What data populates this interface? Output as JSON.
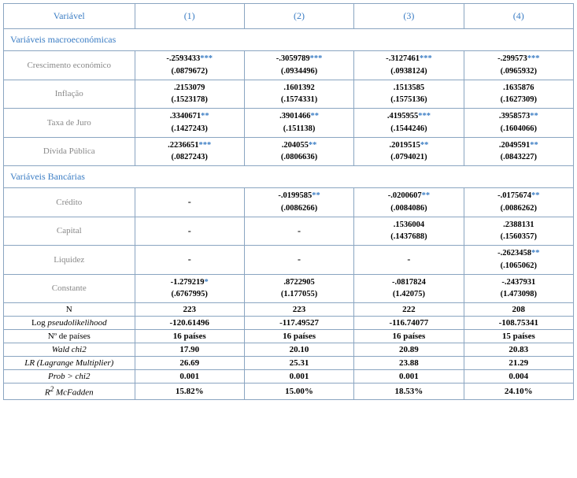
{
  "header": {
    "variable": "Variável",
    "cols": [
      "(1)",
      "(2)",
      "(3)",
      "(4)"
    ]
  },
  "section_macro": "Variáveis macroeconómicas",
  "section_bank": "Variáveis Bancárias",
  "macro_rows": [
    {
      "label": "Crescimento económico",
      "cells": [
        {
          "coef": "-.2593433",
          "stars": "***",
          "se": "(.0879672)"
        },
        {
          "coef": "-.3059789",
          "stars": "***",
          "se": "(.0934496)"
        },
        {
          "coef": "-.3127461",
          "stars": "***",
          "se": "(.0938124)"
        },
        {
          "coef": "-.299573",
          "stars": "***",
          "se": "(.0965932)"
        }
      ]
    },
    {
      "label": "Inflação",
      "cells": [
        {
          "coef": ".2153079",
          "stars": "",
          "se": "(.1523178)"
        },
        {
          "coef": ".1601392",
          "stars": "",
          "se": "(.1574331)"
        },
        {
          "coef": ".1513585",
          "stars": "",
          "se": "(.1575136)"
        },
        {
          "coef": ".1635876",
          "stars": "",
          "se": "(.1627309)"
        }
      ]
    },
    {
      "label": "Taxa de Juro",
      "cells": [
        {
          "coef": ".3340671",
          "stars": "**",
          "se": "(.1427243)"
        },
        {
          "coef": ".3901466",
          "stars": "**",
          "se": "(.151138)"
        },
        {
          "coef": ".4195955",
          "stars": "***",
          "se": "(.1544246)"
        },
        {
          "coef": ".3958573",
          "stars": "**",
          "se": "(.1604066)"
        }
      ]
    },
    {
      "label": "Dívida Pública",
      "cells": [
        {
          "coef": ".2236651",
          "stars": "***",
          "se": "(.0827243)"
        },
        {
          "coef": ".204055",
          "stars": "**",
          "se": "(.0806636)"
        },
        {
          "coef": ".2019515",
          "stars": "**",
          "se": "(.0794021)"
        },
        {
          "coef": ".2049591",
          "stars": "**",
          "se": "(.0843227)"
        }
      ]
    }
  ],
  "bank_rows": [
    {
      "label": "Crédito",
      "cells": [
        {
          "dash": "-"
        },
        {
          "coef": "-.0199585",
          "stars": "**",
          "se": "(.0086266)"
        },
        {
          "coef": "-.0200607",
          "stars": "**",
          "se": "(.0084086)"
        },
        {
          "coef": "-.0175674",
          "stars": "**",
          "se": "(.0086262)"
        }
      ]
    },
    {
      "label": "Capital",
      "cells": [
        {
          "dash": "-"
        },
        {
          "dash": "-"
        },
        {
          "coef": ".1536004",
          "stars": "",
          "se": "(.1437688)"
        },
        {
          "coef": ".2388131",
          "stars": "",
          "se": "(.1560357)"
        }
      ]
    },
    {
      "label": "Liquidez",
      "cells": [
        {
          "dash": "-"
        },
        {
          "dash": "-"
        },
        {
          "dash": "-"
        },
        {
          "coef": "-.2623458",
          "stars": "**",
          "se": "(.1065062)"
        }
      ]
    },
    {
      "label": "Constante",
      "cells": [
        {
          "coef": "-1.279219",
          "stars": "*",
          "se": "(.6767995)"
        },
        {
          "coef": ".8722905",
          "stars": "",
          "se": "(1.177055)"
        },
        {
          "coef": "-.0817824",
          "stars": "",
          "se": "(1.42075)"
        },
        {
          "coef": "-.2437931",
          "stars": "",
          "se": "(1.473098)"
        }
      ]
    }
  ],
  "stats": [
    {
      "label_plain": "N",
      "values": [
        "223",
        "223",
        "222",
        "208"
      ]
    },
    {
      "label_pre": "Log ",
      "label_ital": "pseudolikelihood",
      "values": [
        "-120.61496",
        "-117.49527",
        "-116.74077",
        "-108.75341"
      ]
    },
    {
      "label_plain": "Nº de países",
      "values": [
        "16 países",
        "16 países",
        "16 países",
        "15 países"
      ]
    },
    {
      "label_ital": "Wald chi2",
      "values": [
        "17.90",
        "20.10",
        "20.89",
        "20.83"
      ]
    },
    {
      "label_ital": "LR (Lagrange Multiplier)",
      "values": [
        "26.69",
        "25.31",
        "23.88",
        "21.29"
      ]
    },
    {
      "label_ital": "Prob > chi2",
      "values": [
        "0.001",
        "0.001",
        "0.001",
        "0.004"
      ]
    },
    {
      "label_pre_ital": "R",
      "label_sup": "2",
      "label_post_ital": " McFadden",
      "values": [
        "15.82%",
        "15.00%",
        "18.53%",
        "24.10%"
      ]
    }
  ]
}
